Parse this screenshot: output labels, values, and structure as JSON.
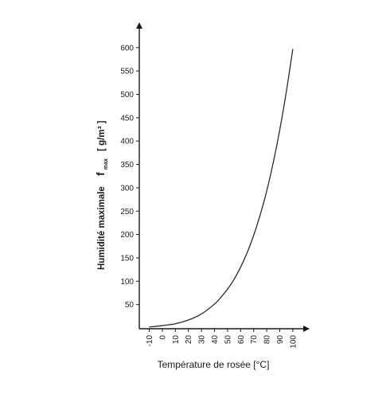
{
  "chart_data": {
    "type": "line",
    "xlabel": "Température de rosée [°C]",
    "ylabel": {
      "text": "Humidité maximale",
      "symbol": "f",
      "subscript": "max",
      "unit": "[ g/m³ ]"
    },
    "xlim": [
      -15,
      105
    ],
    "ylim": [
      0,
      625
    ],
    "x_ticks": [
      -10,
      0,
      10,
      20,
      30,
      40,
      50,
      60,
      70,
      80,
      90,
      100
    ],
    "y_ticks": [
      50,
      100,
      150,
      200,
      250,
      300,
      350,
      400,
      450,
      500,
      550,
      600
    ],
    "grid": false,
    "series": [
      {
        "x": [
          -10,
          0,
          10,
          20,
          30,
          40,
          45,
          50,
          55,
          60,
          65,
          70,
          75,
          80,
          85,
          90,
          95,
          100
        ],
        "y": [
          2,
          5,
          9,
          17,
          30,
          51,
          66,
          83,
          104,
          130,
          161,
          198,
          242,
          293,
          354,
          424,
          505,
          597
        ]
      }
    ],
    "colors": {
      "curve": "#2a2a2a",
      "axes": "#1a1a1a"
    }
  }
}
